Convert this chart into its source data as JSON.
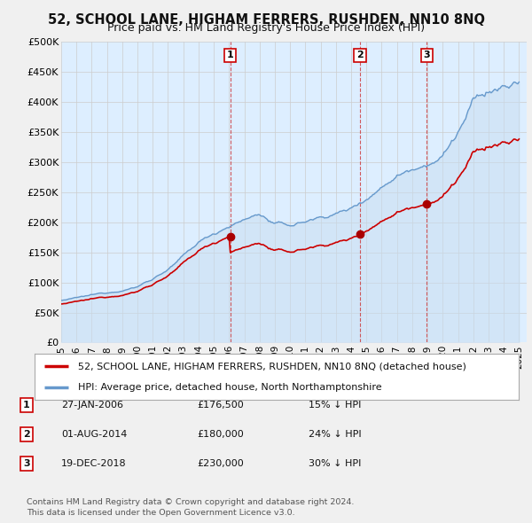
{
  "title": "52, SCHOOL LANE, HIGHAM FERRERS, RUSHDEN, NN10 8NQ",
  "subtitle": "Price paid vs. HM Land Registry's House Price Index (HPI)",
  "ylim": [
    0,
    500000
  ],
  "yticks": [
    0,
    50000,
    100000,
    150000,
    200000,
    250000,
    300000,
    350000,
    400000,
    450000,
    500000
  ],
  "ytick_labels": [
    "£0",
    "£50K",
    "£100K",
    "£150K",
    "£200K",
    "£250K",
    "£300K",
    "£350K",
    "£400K",
    "£450K",
    "£500K"
  ],
  "transactions": [
    {
      "date_x": 2006.08,
      "price": 176500,
      "label": "1"
    },
    {
      "date_x": 2014.58,
      "price": 180000,
      "label": "2"
    },
    {
      "date_x": 2018.96,
      "price": 230000,
      "label": "3"
    }
  ],
  "transaction_color": "#cc0000",
  "hpi_color": "#6699cc",
  "hpi_fill_color": "#ddeeff",
  "plot_bg_color": "#ddeeff",
  "legend_property_label": "52, SCHOOL LANE, HIGHAM FERRERS, RUSHDEN, NN10 8NQ (detached house)",
  "legend_hpi_label": "HPI: Average price, detached house, North Northamptonshire",
  "table_rows": [
    [
      "1",
      "27-JAN-2006",
      "£176,500",
      "15% ↓ HPI"
    ],
    [
      "2",
      "01-AUG-2014",
      "£180,000",
      "24% ↓ HPI"
    ],
    [
      "3",
      "19-DEC-2018",
      "£230,000",
      "30% ↓ HPI"
    ]
  ],
  "footer_text": "Contains HM Land Registry data © Crown copyright and database right 2024.\nThis data is licensed under the Open Government Licence v3.0.",
  "background_color": "#f0f0f0",
  "grid_color": "#cccccc",
  "xmin": 1995,
  "xmax": 2025.5
}
